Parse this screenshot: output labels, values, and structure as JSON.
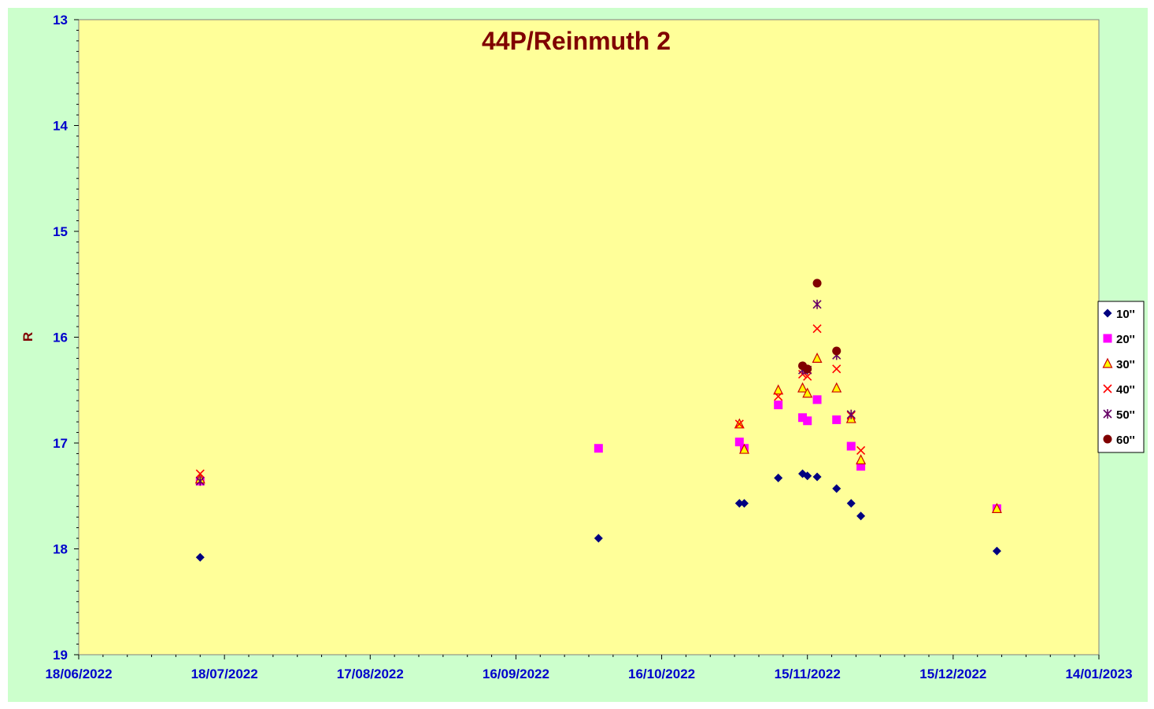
{
  "chart_data": {
    "type": "scatter",
    "title": "44P/Reinmuth 2",
    "xlabel": "",
    "ylabel": "R",
    "ylim": [
      13,
      19
    ],
    "y_reversed": true,
    "y_ticks": [
      "13",
      "14",
      "15",
      "16",
      "17",
      "18",
      "19"
    ],
    "x_ticks": [
      "18/06/2022",
      "18/07/2022",
      "17/08/2022",
      "16/09/2022",
      "16/10/2022",
      "15/11/2022",
      "15/12/2022",
      "14/01/2023"
    ],
    "xlim": [
      "2022-06-18",
      "2023-01-14"
    ],
    "grid": false,
    "legend_position": "right",
    "plot_background": "#ffff99",
    "chart_background": "#ccffcc",
    "series": [
      {
        "name": "10''",
        "marker": "diamond",
        "color": "#000080",
        "points": [
          [
            "2022-07-13",
            18.08
          ],
          [
            "2022-10-03",
            17.9
          ],
          [
            "2022-11-01",
            17.57
          ],
          [
            "2022-11-02",
            17.57
          ],
          [
            "2022-11-09",
            17.33
          ],
          [
            "2022-11-14",
            17.29
          ],
          [
            "2022-11-15",
            17.31
          ],
          [
            "2022-11-17",
            17.32
          ],
          [
            "2022-11-21",
            17.43
          ],
          [
            "2022-11-24",
            17.57
          ],
          [
            "2022-11-26",
            17.69
          ],
          [
            "2022-12-24",
            18.02
          ]
        ]
      },
      {
        "name": "20''",
        "marker": "square",
        "color": "#ff00ff",
        "points": [
          [
            "2022-07-13",
            17.36
          ],
          [
            "2022-10-03",
            17.05
          ],
          [
            "2022-11-01",
            16.99
          ],
          [
            "2022-11-02",
            17.05
          ],
          [
            "2022-11-09",
            16.64
          ],
          [
            "2022-11-14",
            16.76
          ],
          [
            "2022-11-15",
            16.79
          ],
          [
            "2022-11-17",
            16.59
          ],
          [
            "2022-11-21",
            16.78
          ],
          [
            "2022-11-24",
            17.03
          ],
          [
            "2022-11-26",
            17.22
          ],
          [
            "2022-12-24",
            17.62
          ]
        ]
      },
      {
        "name": "30''",
        "marker": "triangle",
        "color": "#ffff00",
        "stroke": "#cc0000",
        "points": [
          [
            "2022-07-13",
            17.34
          ],
          [
            "2022-11-01",
            16.82
          ],
          [
            "2022-11-02",
            17.06
          ],
          [
            "2022-11-09",
            16.5
          ],
          [
            "2022-11-14",
            16.48
          ],
          [
            "2022-11-15",
            16.53
          ],
          [
            "2022-11-17",
            16.2
          ],
          [
            "2022-11-21",
            16.48
          ],
          [
            "2022-11-24",
            16.77
          ],
          [
            "2022-11-26",
            17.16
          ],
          [
            "2022-12-24",
            17.62
          ]
        ]
      },
      {
        "name": "40''",
        "marker": "x",
        "color": "#ff0000",
        "points": [
          [
            "2022-07-13",
            17.29
          ],
          [
            "2022-11-01",
            16.82
          ],
          [
            "2022-11-09",
            16.56
          ],
          [
            "2022-11-14",
            16.35
          ],
          [
            "2022-11-15",
            16.37
          ],
          [
            "2022-11-17",
            15.92
          ],
          [
            "2022-11-21",
            16.3
          ],
          [
            "2022-11-24",
            16.74
          ],
          [
            "2022-11-26",
            17.07
          ]
        ]
      },
      {
        "name": "50''",
        "marker": "star",
        "color": "#660066",
        "points": [
          [
            "2022-07-13",
            17.36
          ],
          [
            "2022-11-14",
            16.31
          ],
          [
            "2022-11-15",
            16.31
          ],
          [
            "2022-11-17",
            15.69
          ],
          [
            "2022-11-21",
            16.17
          ],
          [
            "2022-11-24",
            16.73
          ]
        ]
      },
      {
        "name": "60''",
        "marker": "circle",
        "color": "#800000",
        "points": [
          [
            "2022-11-14",
            16.27
          ],
          [
            "2022-11-15",
            16.3
          ],
          [
            "2022-11-17",
            15.49
          ],
          [
            "2022-11-21",
            16.13
          ]
        ]
      }
    ]
  }
}
